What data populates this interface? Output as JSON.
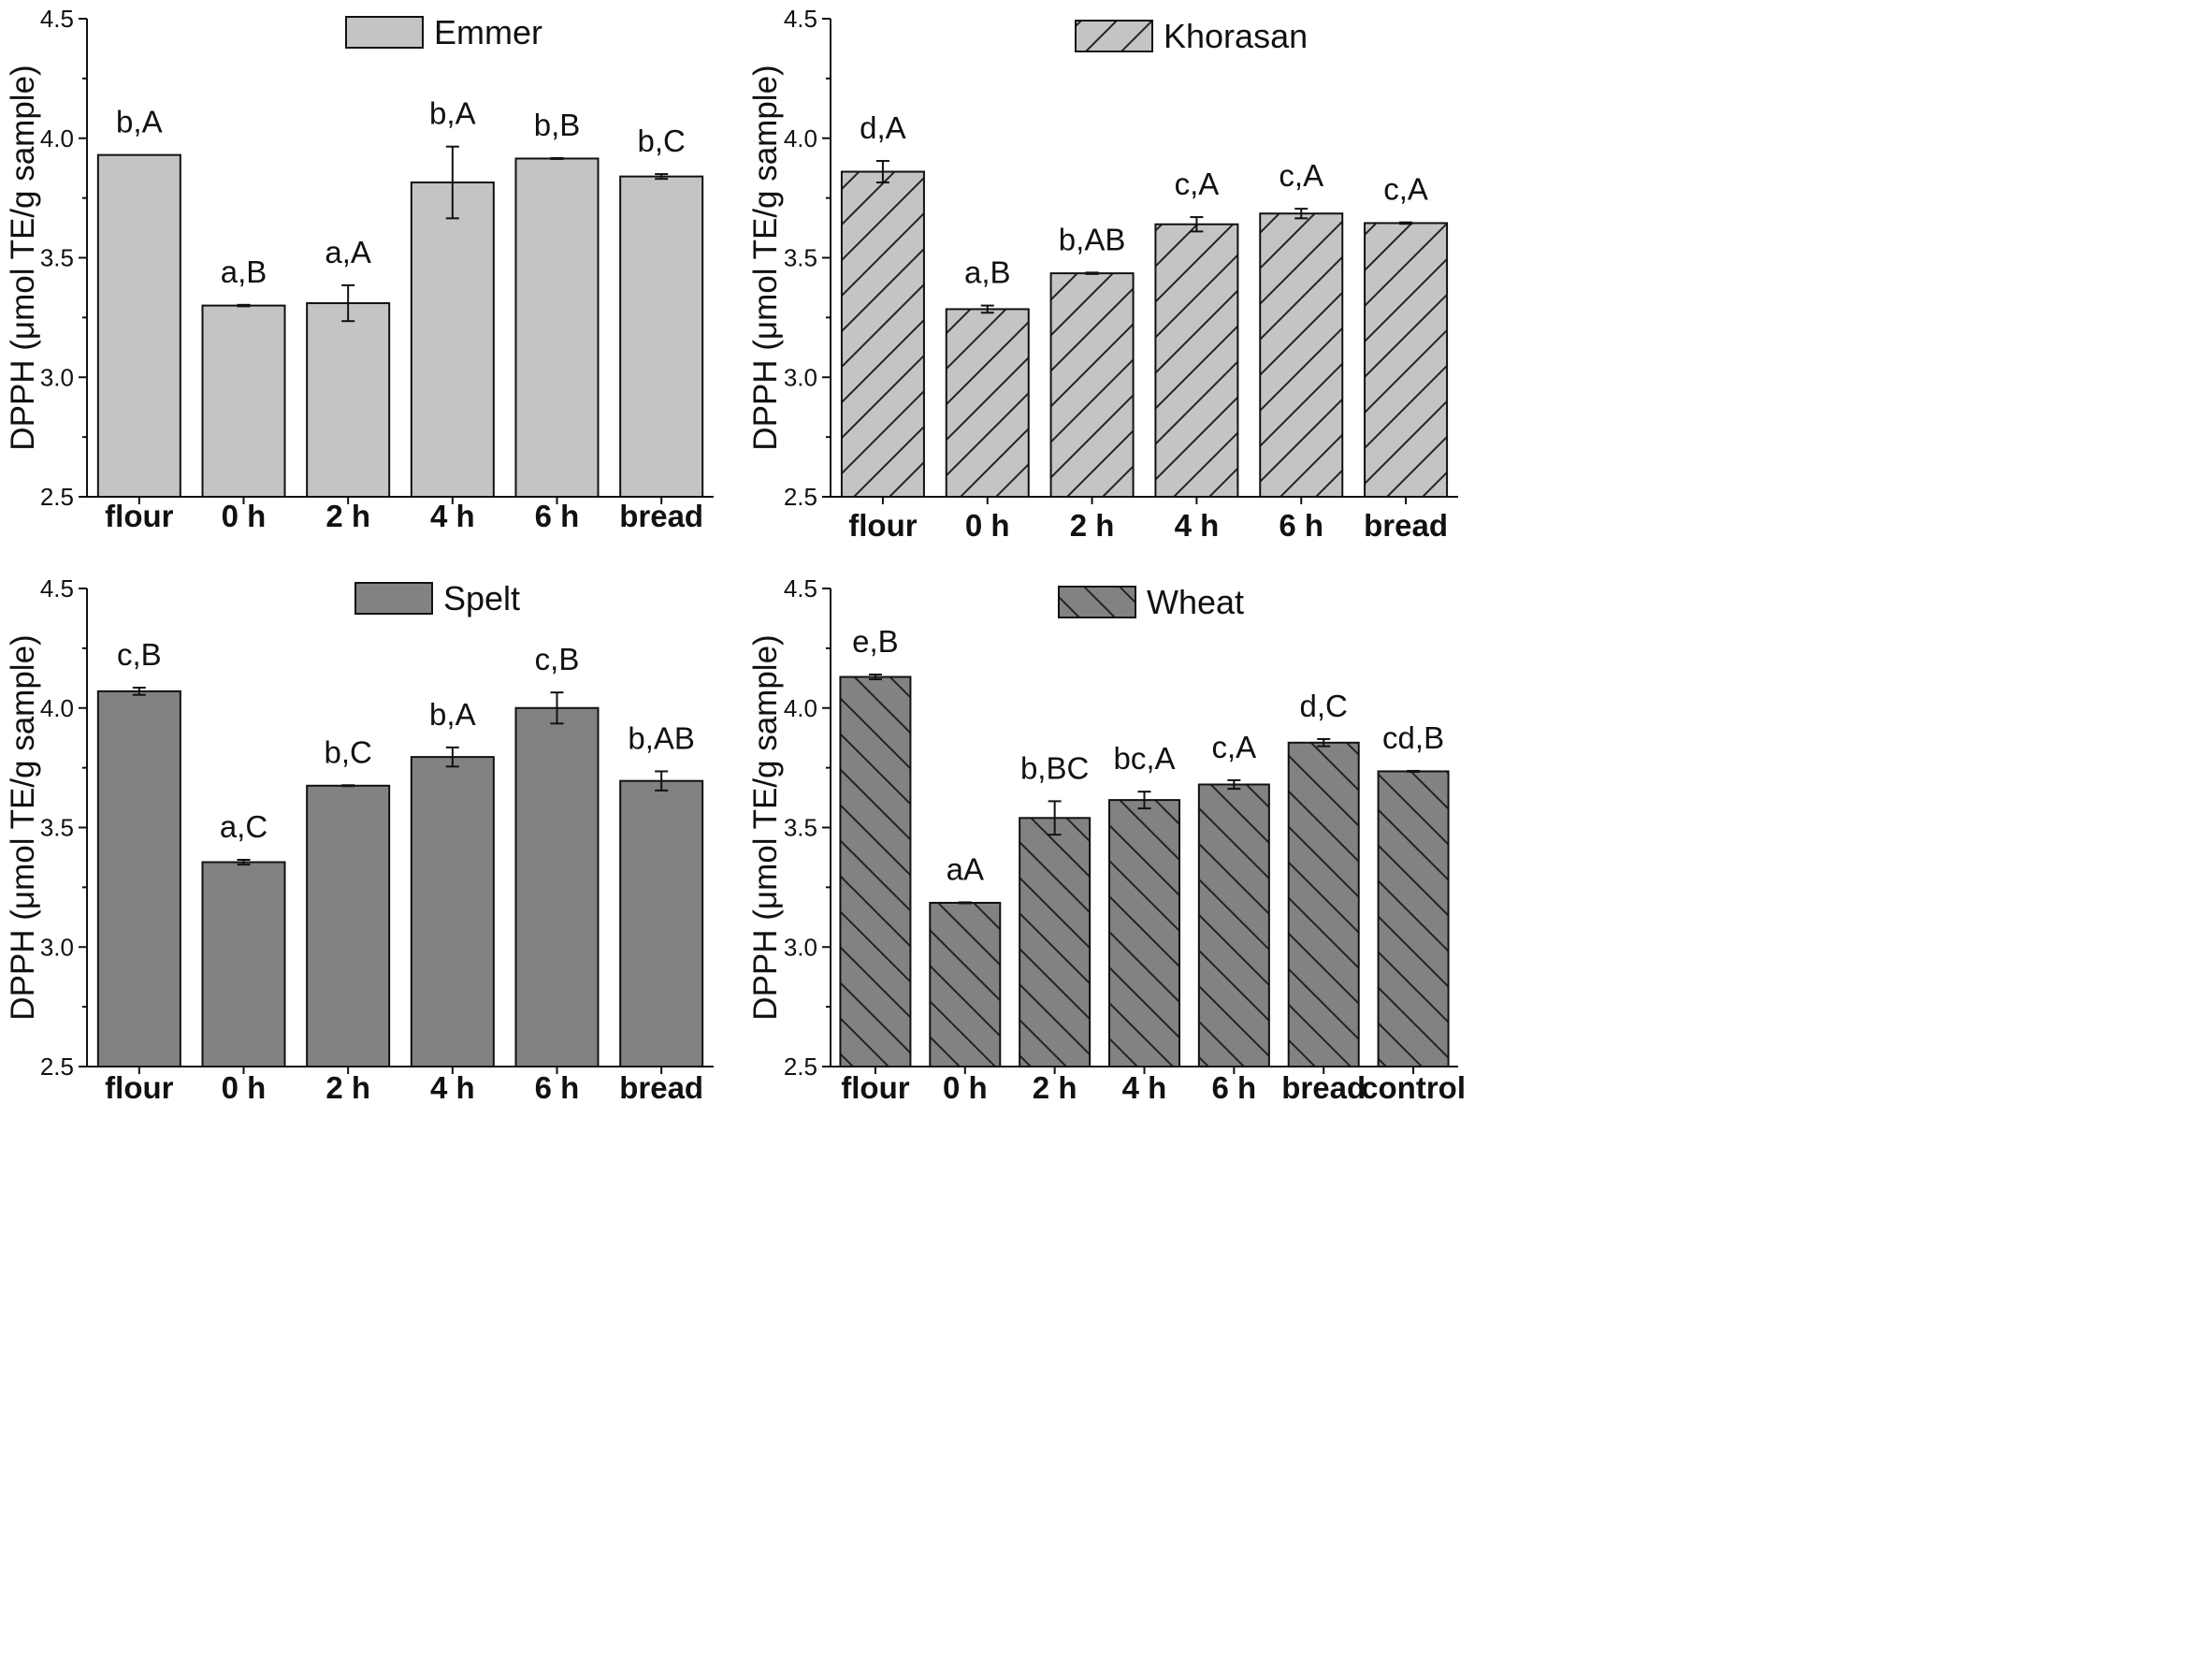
{
  "chart_data": [
    {
      "type": "bar",
      "legend": "top-center",
      "series_name": "Emmer",
      "fill": "#c4c4c4",
      "hatch": "none",
      "ylabel": "DPPH (μmol TE/g sample)",
      "ylim": [
        2.5,
        4.5
      ],
      "yticks": [
        "2.5",
        "3.0",
        "3.5",
        "4.0",
        "4.5"
      ],
      "categories": [
        "flour",
        "0 h",
        "2 h",
        "4 h",
        "6 h",
        "bread"
      ],
      "values": [
        3.93,
        3.3,
        3.31,
        3.815,
        3.915,
        3.84
      ],
      "errors": [
        0.0,
        0.003,
        0.075,
        0.15,
        0.002,
        0.01
      ],
      "labels": [
        "b,A",
        "a,B",
        "a,A",
        "b,A",
        "b,B",
        "b,C"
      ],
      "grid": false
    },
    {
      "type": "bar",
      "legend": "top-center",
      "series_name": "Khorasan",
      "fill": "#c4c4c4",
      "hatch": "forward",
      "ylabel": "DPPH (μmol TE/g sample)",
      "ylim": [
        2.5,
        4.5
      ],
      "yticks": [
        "2.5",
        "3.0",
        "3.5",
        "4.0",
        "4.5"
      ],
      "categories": [
        "flour",
        "0 h",
        "2 h",
        "4 h",
        "6 h",
        "bread"
      ],
      "values": [
        3.86,
        3.285,
        3.435,
        3.64,
        3.685,
        3.645
      ],
      "errors": [
        0.045,
        0.015,
        0.003,
        0.03,
        0.02,
        0.003
      ],
      "labels": [
        "d,A",
        "a,B",
        "b,AB",
        "c,A",
        "c,A",
        "c,A"
      ],
      "grid": false
    },
    {
      "type": "bar",
      "legend": "top-center",
      "series_name": "Spelt",
      "fill": "#828282",
      "hatch": "none",
      "ylabel": "DPPH (μmol TE/g sample)",
      "ylim": [
        2.5,
        4.5
      ],
      "yticks": [
        "2.5",
        "3.0",
        "3.5",
        "4.0",
        "4.5"
      ],
      "categories": [
        "flour",
        "0 h",
        "2 h",
        "4 h",
        "6 h",
        "bread"
      ],
      "values": [
        4.07,
        3.355,
        3.675,
        3.795,
        4.0,
        3.695
      ],
      "errors": [
        0.015,
        0.01,
        0.002,
        0.04,
        0.065,
        0.04
      ],
      "labels": [
        "c,B",
        "a,C",
        "b,C",
        "b,A",
        "c,B",
        "b,AB"
      ],
      "grid": false
    },
    {
      "type": "bar",
      "legend": "top-center",
      "series_name": "Wheat",
      "fill": "#828282",
      "hatch": "back",
      "ylabel": "DPPH (μmol TE/g sample)",
      "ylim": [
        2.5,
        4.5
      ],
      "yticks": [
        "2.5",
        "3.0",
        "3.5",
        "4.0",
        "4.5"
      ],
      "categories": [
        "flour",
        "0 h",
        "2 h",
        "4 h",
        "6 h",
        "bread",
        "control"
      ],
      "values": [
        4.13,
        3.185,
        3.54,
        3.615,
        3.68,
        3.855,
        3.735
      ],
      "errors": [
        0.01,
        0.002,
        0.07,
        0.035,
        0.018,
        0.015,
        0.002
      ],
      "labels": [
        "e,B",
        "aA",
        "b,BC",
        "bc,A",
        "c,A",
        "d,C",
        "cd,B"
      ],
      "grid": false
    }
  ]
}
